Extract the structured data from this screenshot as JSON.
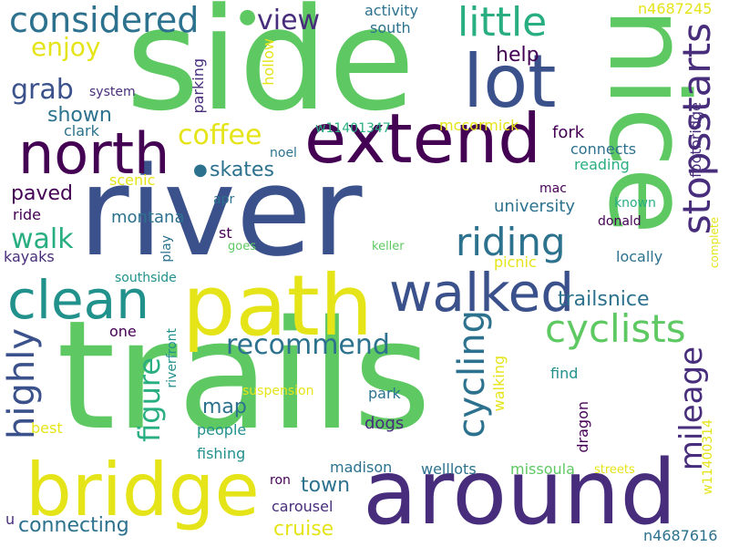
{
  "colors": {
    "background": "#ffffff",
    "dark_purple": "#440154",
    "purple": "#472d7b",
    "indigo": "#3b518b",
    "blue": "#2c728e",
    "teal": "#21918c",
    "green_teal": "#28ae80",
    "green": "#5ec962",
    "lime": "#addc30",
    "yellow": "#e5e419"
  },
  "words": {
    "trails": "trails",
    "river": "river",
    "side": "side",
    "nice": "nice",
    "around": "around",
    "path": "path",
    "bridge": "bridge",
    "extend": "extend",
    "lot": "lot",
    "north": "north",
    "walked": "walked",
    "clean": "clean",
    "considered": "considered",
    "little": "little",
    "stopsstarts": "stopsstarts",
    "riding": "riding",
    "cyclists": "cyclists",
    "mileage": "mileage",
    "highly": "highly",
    "recommend": "recommend",
    "cycling": "cycling",
    "figure": "figure",
    "coffee": "coffee",
    "view": "view",
    "enjoy": "enjoy",
    "grab": "grab",
    "walk": "walk",
    "skates": "skates",
    "town": "town",
    "connecting": "connecting",
    "cruise": "cruise",
    "trailsnice": "trailsnice",
    "paved": "paved",
    "help": "help",
    "shown": "shown",
    "map": "map",
    "montana": "montana",
    "university": "university",
    "activity": "activity",
    "south": "south",
    "n4687245": "n4687245",
    "hollow": "hollow",
    "parking": "parking",
    "system": "system",
    "w11401347": "w11401347",
    "mccormick": "mccormick",
    "clark": "clark",
    "fork": "fork",
    "connects": "connects",
    "reading": "reading",
    "footbridge": "footbridge",
    "noel": "noel",
    "scenic": "scenic",
    "mac": "mac",
    "ride": "ride",
    "apr": "apr",
    "known": "known",
    "donald": "donald",
    "kayaks": "kayaks",
    "st": "st",
    "goes": "goes",
    "play": "play",
    "keller": "keller",
    "complete": "complete",
    "southside": "southside",
    "locally": "locally",
    "picnic": "picnic",
    "one": "one",
    "riverfront": "riverfront",
    "find": "find",
    "walking": "walking",
    "dragon": "dragon",
    "suspension": "suspension",
    "park": "park",
    "people": "people",
    "best": "best",
    "dogs": "dogs",
    "fishing": "fishing",
    "w11400314": "w11400314",
    "ron": "ron",
    "madison": "madison",
    "welllots": "welllots",
    "missoula": "missoula",
    "streets": "streets",
    "carousel": "carousel",
    "u": "u",
    "n4687616": "n4687616"
  }
}
